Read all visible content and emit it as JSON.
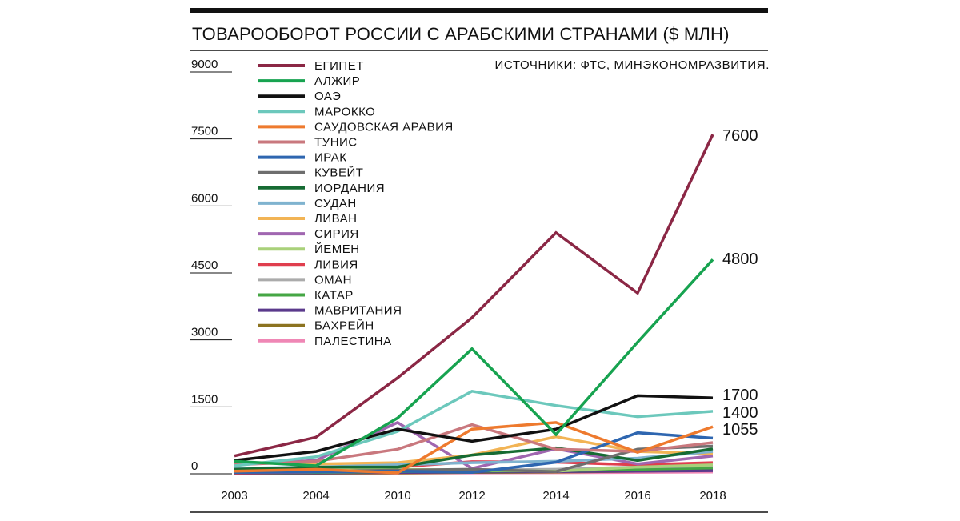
{
  "header": {
    "title": "ТОВАРООБОРОТ РОССИИ С АРАБСКИМИ СТРАНАМИ ($ МЛН)",
    "source": "ИСТОЧНИКИ: ФТС, МИНЭКОНОМРАЗВИТИЯ."
  },
  "chart_data": {
    "type": "line",
    "title": "ТОВАРООБОРОТ РОССИИ С АРАБСКИМИ СТРАНАМИ ($ МЛН)",
    "xlabel": "",
    "ylabel": "",
    "x": [
      "2003",
      "2004",
      "2010",
      "2012",
      "2014",
      "2016",
      "2018"
    ],
    "yticks": [
      0,
      1500,
      3000,
      4500,
      6000,
      7500,
      9000
    ],
    "ylim": [
      0,
      9000
    ],
    "grid": false,
    "legend_position": "top-left",
    "series": [
      {
        "name": "ЕГИПЕТ",
        "color": "#8b2745",
        "values": [
          400,
          820,
          2150,
          3500,
          5400,
          4050,
          7600
        ]
      },
      {
        "name": "АЛЖИР",
        "color": "#17a350",
        "values": [
          280,
          180,
          1250,
          2800,
          880,
          2950,
          4800
        ]
      },
      {
        "name": "ОАЭ",
        "color": "#111111",
        "values": [
          300,
          500,
          1000,
          730,
          1000,
          1750,
          1700
        ]
      },
      {
        "name": "МАРОККО",
        "color": "#6cc8bc",
        "values": [
          180,
          380,
          950,
          1850,
          1530,
          1280,
          1400
        ]
      },
      {
        "name": "САУДОВСКАЯ АРАВИЯ",
        "color": "#ee7a2e",
        "values": [
          60,
          100,
          20,
          1000,
          1150,
          480,
          1055
        ]
      },
      {
        "name": "ТУНИС",
        "color": "#c9787e",
        "values": [
          200,
          280,
          550,
          1100,
          550,
          500,
          700
        ]
      },
      {
        "name": "ИРАК",
        "color": "#2e66b0",
        "values": [
          30,
          40,
          60,
          30,
          260,
          920,
          800
        ]
      },
      {
        "name": "КУВЕЙТ",
        "color": "#6e6e6e",
        "values": [
          50,
          60,
          80,
          100,
          50,
          550,
          620
        ]
      },
      {
        "name": "ИОРДАНИЯ",
        "color": "#166b33",
        "values": [
          100,
          150,
          150,
          420,
          580,
          300,
          560
        ]
      },
      {
        "name": "СУДАН",
        "color": "#7fb3cf",
        "values": [
          120,
          150,
          200,
          250,
          280,
          350,
          500
        ]
      },
      {
        "name": "ЛИВАН",
        "color": "#f2b455",
        "values": [
          250,
          220,
          250,
          420,
          830,
          500,
          450
        ]
      },
      {
        "name": "СИРИЯ",
        "color": "#a066b0",
        "values": [
          200,
          300,
          1150,
          120,
          560,
          220,
          400
        ]
      },
      {
        "name": "ЙЕМЕН",
        "color": "#a9d17a",
        "values": [
          60,
          80,
          100,
          80,
          60,
          150,
          200
        ]
      },
      {
        "name": "ЛИВИЯ",
        "color": "#e03e4e",
        "values": [
          20,
          40,
          150,
          270,
          260,
          200,
          250
        ]
      },
      {
        "name": "ОМАН",
        "color": "#ababab",
        "values": [
          30,
          40,
          60,
          80,
          100,
          150,
          180
        ]
      },
      {
        "name": "КАТАР",
        "color": "#45a644",
        "values": [
          20,
          30,
          50,
          60,
          70,
          100,
          130
        ]
      },
      {
        "name": "МАВРИТАНИЯ",
        "color": "#5b3a8c",
        "values": [
          10,
          20,
          30,
          40,
          50,
          60,
          70
        ]
      },
      {
        "name": "БАХРЕЙН",
        "color": "#8c7320",
        "values": [
          10,
          15,
          20,
          30,
          40,
          60,
          90
        ]
      },
      {
        "name": "ПАЛЕСТИНА",
        "color": "#ef87b5",
        "values": [
          5,
          10,
          15,
          20,
          25,
          30,
          40
        ]
      }
    ],
    "end_labels": [
      {
        "text": "7600",
        "value": 7600
      },
      {
        "text": "4800",
        "value": 4800
      },
      {
        "text": "1700",
        "value": 1700
      },
      {
        "text": "1400",
        "value": 1400
      },
      {
        "text": "1055",
        "value": 1055
      }
    ]
  }
}
